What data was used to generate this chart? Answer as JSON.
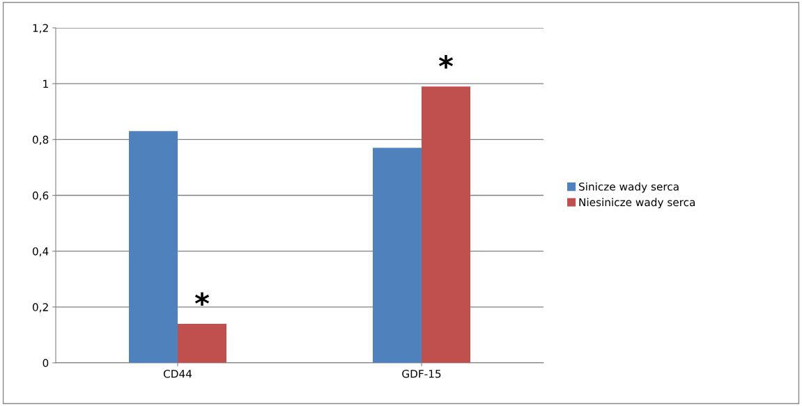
{
  "chart_data": {
    "type": "bar",
    "categories": [
      "CD44",
      "GDF-15"
    ],
    "series": [
      {
        "name": "Sinicze wady serca",
        "color": "#4f81bd",
        "values": [
          0.83,
          0.77
        ]
      },
      {
        "name": "Niesinicze wady serca",
        "color": "#c0504d",
        "values": [
          0.14,
          0.99
        ]
      }
    ],
    "ylim": [
      0,
      1.2
    ],
    "yticks": [
      0,
      {
        "value": 0.2,
        "label": "0,2"
      },
      {
        "value": 0.4,
        "label": "0,4"
      },
      {
        "value": 0.6,
        "label": "0,6"
      },
      {
        "value": 0.8,
        "label": "0,8"
      },
      1,
      {
        "value": 1.2,
        "label": "1,2"
      }
    ],
    "grid": "y",
    "legend": "right",
    "annotations": [
      {
        "text": "*",
        "x": "CD44",
        "y": 0.14
      },
      {
        "text": "*",
        "x": "GDF-15",
        "y": 0.99
      }
    ]
  }
}
